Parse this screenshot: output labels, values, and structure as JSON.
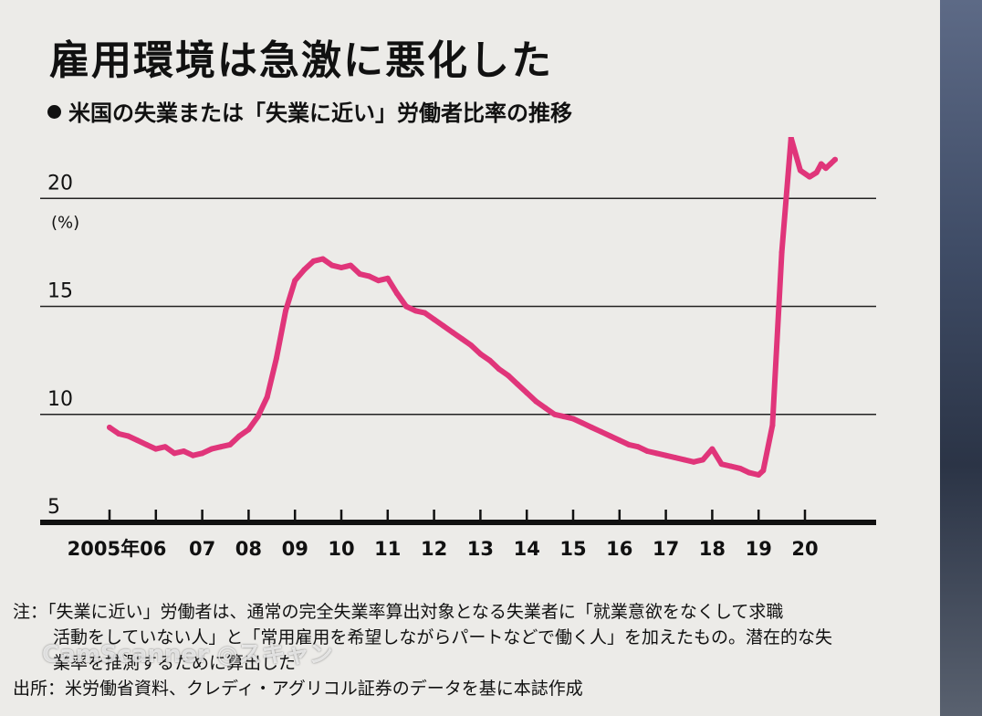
{
  "page": {
    "title": "雇用環境は急激に悪化した",
    "subtitle": "米国の失業または「失業に近い」労働者比率の推移"
  },
  "chart_data": {
    "type": "line",
    "title": "雇用環境は急激に悪化した",
    "subtitle": "米国の失業または「失業に近い」労働者比率の推移",
    "ylabel": "",
    "unit_label": "(%)",
    "ylim": [
      5,
      22
    ],
    "yticks": [
      5,
      10,
      15,
      20
    ],
    "xlim": [
      2005.0,
      2020.7
    ],
    "xticks": [
      {
        "label": "2005年",
        "value": 2005.0
      },
      {
        "label": "06",
        "value": 2006.0
      },
      {
        "label": "07",
        "value": 2007.0
      },
      {
        "label": "08",
        "value": 2008.0
      },
      {
        "label": "09",
        "value": 2009.0
      },
      {
        "label": "10",
        "value": 2010.0
      },
      {
        "label": "11",
        "value": 2011.0
      },
      {
        "label": "12",
        "value": 2012.0
      },
      {
        "label": "13",
        "value": 2013.0
      },
      {
        "label": "14",
        "value": 2014.0
      },
      {
        "label": "15",
        "value": 2015.0
      },
      {
        "label": "16",
        "value": 2016.0
      },
      {
        "label": "17",
        "value": 2017.0
      },
      {
        "label": "18",
        "value": 2018.0
      },
      {
        "label": "19",
        "value": 2019.0
      },
      {
        "label": "20",
        "value": 2020.0
      }
    ],
    "grid": true,
    "line_color": "#e0357a",
    "series": [
      {
        "name": "",
        "x": [
          2005.0,
          2005.2,
          2005.4,
          2005.6,
          2005.8,
          2006.0,
          2006.2,
          2006.4,
          2006.6,
          2006.8,
          2007.0,
          2007.2,
          2007.4,
          2007.6,
          2007.8,
          2008.0,
          2008.2,
          2008.4,
          2008.6,
          2008.8,
          2009.0,
          2009.2,
          2009.4,
          2009.6,
          2009.8,
          2010.0,
          2010.2,
          2010.4,
          2010.6,
          2010.8,
          2011.0,
          2011.2,
          2011.4,
          2011.6,
          2011.8,
          2012.0,
          2012.2,
          2012.4,
          2012.6,
          2012.8,
          2013.0,
          2013.2,
          2013.4,
          2013.6,
          2013.8,
          2014.0,
          2014.2,
          2014.4,
          2014.6,
          2014.8,
          2015.0,
          2015.2,
          2015.4,
          2015.6,
          2015.8,
          2016.0,
          2016.2,
          2016.4,
          2016.6,
          2016.8,
          2017.0,
          2017.2,
          2017.4,
          2017.6,
          2017.8,
          2018.0,
          2018.2,
          2018.4,
          2018.6,
          2018.8,
          2019.0,
          2019.1,
          2019.3,
          2019.5,
          2019.7,
          2019.9,
          2020.1,
          2020.25,
          2020.35,
          2020.45,
          2020.55,
          2020.65
        ],
        "y": [
          9.4,
          9.1,
          9.0,
          8.8,
          8.6,
          8.4,
          8.5,
          8.2,
          8.3,
          8.1,
          8.2,
          8.4,
          8.5,
          8.6,
          9.0,
          9.3,
          9.9,
          10.8,
          12.6,
          14.8,
          16.2,
          16.7,
          17.1,
          17.2,
          16.9,
          16.8,
          16.9,
          16.5,
          16.4,
          16.2,
          16.3,
          15.6,
          15.0,
          14.8,
          14.7,
          14.4,
          14.1,
          13.8,
          13.5,
          13.2,
          12.8,
          12.5,
          12.1,
          11.8,
          11.4,
          11.0,
          10.6,
          10.3,
          10.0,
          9.9,
          9.8,
          9.6,
          9.4,
          9.2,
          9.0,
          8.8,
          8.6,
          8.5,
          8.3,
          8.2,
          8.1,
          8.0,
          7.9,
          7.8,
          7.9,
          8.4,
          7.7,
          7.6,
          7.5,
          7.3,
          7.2,
          7.4,
          9.5,
          17.5,
          22.8,
          21.3,
          21.0,
          21.2,
          21.6,
          21.4,
          21.6,
          21.8
        ]
      }
    ]
  },
  "notes": {
    "line1": "注：「失業に近い」労働者は、通常の完全失業率算出対象となる失業者に「就業意欲をなくして求職",
    "line2": "活動をしていない人」と「常用雇用を希望しながらパートなどで働く人」を加えたもの。潜在的な失",
    "line3": "業率を推測するために算出した",
    "source": "出所：米労働省資料、クレディ・アグリコル証券のデータを基に本誌作成"
  },
  "watermark": "CamScanner ◎スキャン"
}
